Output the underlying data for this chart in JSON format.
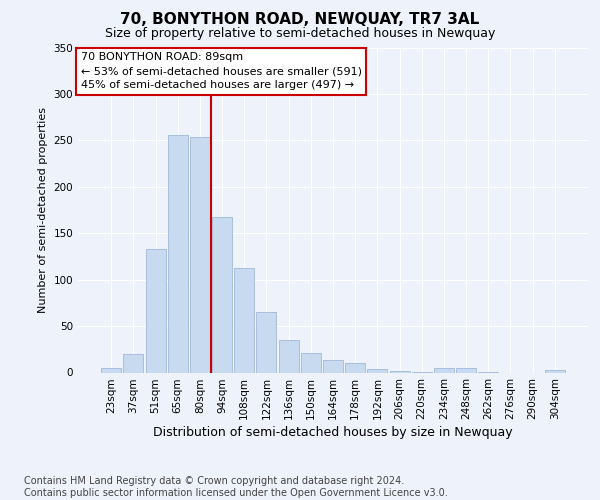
{
  "title": "70, BONYTHON ROAD, NEWQUAY, TR7 3AL",
  "subtitle": "Size of property relative to semi-detached houses in Newquay",
  "xlabel": "Distribution of semi-detached houses by size in Newquay",
  "ylabel": "Number of semi-detached properties",
  "categories": [
    "23sqm",
    "37sqm",
    "51sqm",
    "65sqm",
    "80sqm",
    "94sqm",
    "108sqm",
    "122sqm",
    "136sqm",
    "150sqm",
    "164sqm",
    "178sqm",
    "192sqm",
    "206sqm",
    "220sqm",
    "234sqm",
    "248sqm",
    "262sqm",
    "276sqm",
    "290sqm",
    "304sqm"
  ],
  "values": [
    5,
    20,
    133,
    256,
    254,
    168,
    113,
    65,
    35,
    21,
    14,
    10,
    4,
    2,
    1,
    5,
    5,
    1,
    0,
    0,
    3
  ],
  "bar_color": "#c8daf0",
  "bar_edge_color": "#a0b8d8",
  "vline_x": 4.5,
  "vline_color": "#cc0000",
  "annotation_text": "70 BONYTHON ROAD: 89sqm\n← 53% of semi-detached houses are smaller (591)\n45% of semi-detached houses are larger (497) →",
  "annotation_box_color": "#ffffff",
  "annotation_box_edge_color": "#cc0000",
  "footnote": "Contains HM Land Registry data © Crown copyright and database right 2024.\nContains public sector information licensed under the Open Government Licence v3.0.",
  "ylim": [
    0,
    350
  ],
  "yticks": [
    0,
    50,
    100,
    150,
    200,
    250,
    300,
    350
  ],
  "background_color": "#eef2fa",
  "grid_color": "#ffffff",
  "title_fontsize": 11,
  "subtitle_fontsize": 9,
  "xlabel_fontsize": 9,
  "ylabel_fontsize": 8,
  "footnote_fontsize": 7,
  "annotation_fontsize": 8,
  "tick_fontsize": 7.5
}
